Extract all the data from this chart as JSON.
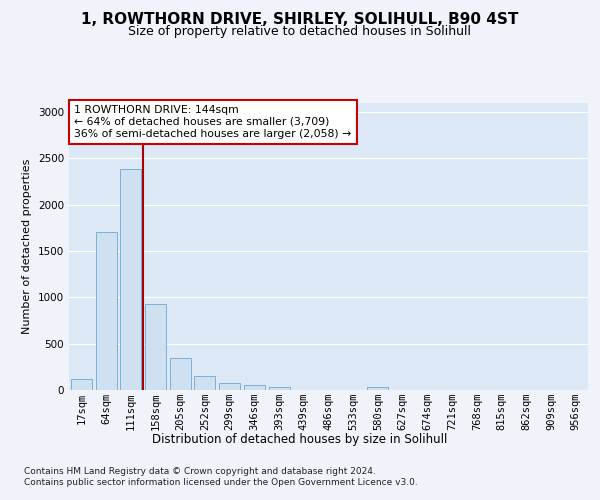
{
  "title": "1, ROWTHORN DRIVE, SHIRLEY, SOLIHULL, B90 4ST",
  "subtitle": "Size of property relative to detached houses in Solihull",
  "xlabel": "Distribution of detached houses by size in Solihull",
  "ylabel": "Number of detached properties",
  "categories": [
    "17sqm",
    "64sqm",
    "111sqm",
    "158sqm",
    "205sqm",
    "252sqm",
    "299sqm",
    "346sqm",
    "393sqm",
    "439sqm",
    "486sqm",
    "533sqm",
    "580sqm",
    "627sqm",
    "674sqm",
    "721sqm",
    "768sqm",
    "815sqm",
    "862sqm",
    "909sqm",
    "956sqm"
  ],
  "values": [
    120,
    1700,
    2380,
    930,
    350,
    150,
    75,
    50,
    30,
    5,
    0,
    0,
    30,
    0,
    0,
    0,
    0,
    0,
    0,
    0,
    0
  ],
  "bar_color": "#cfe0f0",
  "bar_edge_color": "#6aaad4",
  "redline_x": 2.5,
  "annotation_box_text": "1 ROWTHORN DRIVE: 144sqm\n← 64% of detached houses are smaller (3,709)\n36% of semi-detached houses are larger (2,058) →",
  "annotation_box_color": "#ffffff",
  "annotation_box_edge_color": "#cc0000",
  "footnote": "Contains HM Land Registry data © Crown copyright and database right 2024.\nContains public sector information licensed under the Open Government Licence v3.0.",
  "ylim": [
    0,
    3100
  ],
  "background_color": "#f0f4fa",
  "title_fontsize": 11,
  "subtitle_fontsize": 9,
  "ylabel_fontsize": 8,
  "tick_fontsize": 7.5,
  "grid_color": "#ffffff",
  "axis_bg_color": "#dce8f5"
}
